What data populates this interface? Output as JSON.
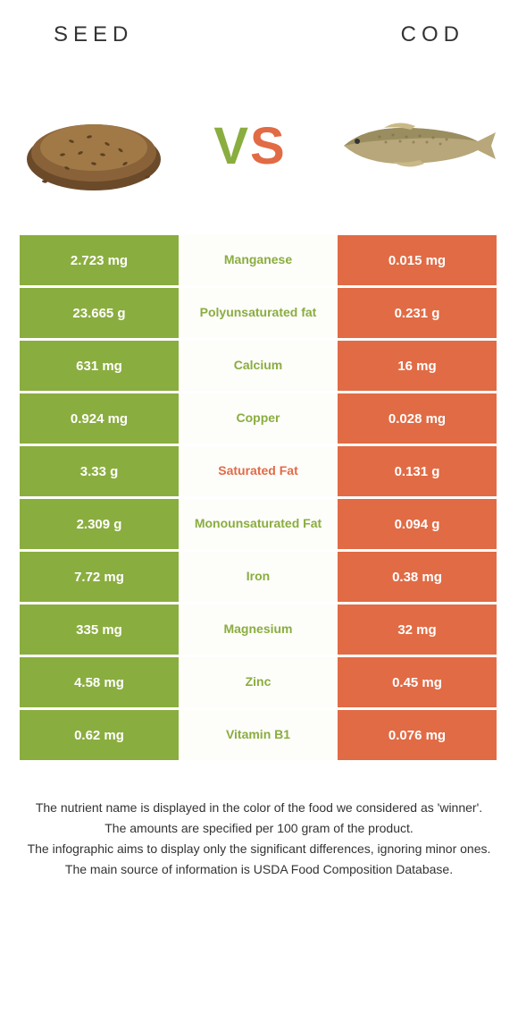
{
  "header": {
    "left_title": "SEED",
    "right_title": "COD"
  },
  "vs": {
    "v": "V",
    "s": "S"
  },
  "colors": {
    "left_bg": "#8aad3f",
    "mid_bg": "#fdfdfa",
    "right_bg": "#e16b45",
    "left_text": "#ffffff",
    "right_text": "#ffffff",
    "mid_winner_seed": "#8aad3f",
    "mid_winner_cod": "#e16b45"
  },
  "rows": [
    {
      "left": "2.723 mg",
      "label": "Manganese",
      "right": "0.015 mg",
      "winner": "seed"
    },
    {
      "left": "23.665 g",
      "label": "Polyunsaturated fat",
      "right": "0.231 g",
      "winner": "seed"
    },
    {
      "left": "631 mg",
      "label": "Calcium",
      "right": "16 mg",
      "winner": "seed"
    },
    {
      "left": "0.924 mg",
      "label": "Copper",
      "right": "0.028 mg",
      "winner": "seed"
    },
    {
      "left": "3.33 g",
      "label": "Saturated Fat",
      "right": "0.131 g",
      "winner": "cod"
    },
    {
      "left": "2.309 g",
      "label": "Monounsaturated Fat",
      "right": "0.094 g",
      "winner": "seed"
    },
    {
      "left": "7.72 mg",
      "label": "Iron",
      "right": "0.38 mg",
      "winner": "seed"
    },
    {
      "left": "335 mg",
      "label": "Magnesium",
      "right": "32 mg",
      "winner": "seed"
    },
    {
      "left": "4.58 mg",
      "label": "Zinc",
      "right": "0.45 mg",
      "winner": "seed"
    },
    {
      "left": "0.62 mg",
      "label": "Vitamin B1",
      "right": "0.076 mg",
      "winner": "seed"
    }
  ],
  "footer": {
    "line1": "The nutrient name is displayed in the color of the food we considered as 'winner'.",
    "line2": "The amounts are specified per 100 gram of the product.",
    "line3": "The infographic aims to display only the significant differences, ignoring minor ones.",
    "line4": "The main source of information is USDA Food Composition Database."
  },
  "images": {
    "seed_alt": "seed-pile-illustration",
    "cod_alt": "cod-fish-illustration"
  }
}
